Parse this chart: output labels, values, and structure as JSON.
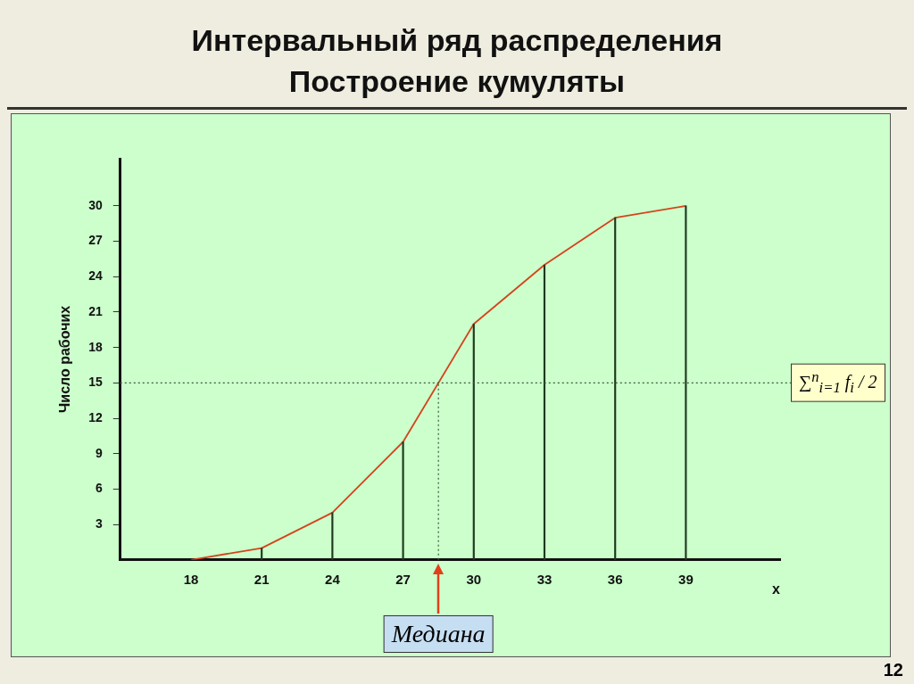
{
  "chart_data": {
    "type": "line",
    "title": "Интервальный ряд распределения\nПостроение кумуляты",
    "xlabel": "x",
    "ylabel": "Число рабочих",
    "x": [
      18,
      21,
      24,
      27,
      30,
      33,
      36,
      39
    ],
    "series": [
      {
        "type": "bar",
        "color": "#1e3a1e",
        "values": [
          0,
          1,
          4,
          10,
          20,
          25,
          29,
          30
        ]
      },
      {
        "color": "#d4441c",
        "values": [
          0,
          1,
          4,
          10,
          20,
          25,
          29,
          30
        ]
      }
    ],
    "xlim": [
      15,
      43
    ],
    "xticks": [
      18,
      21,
      24,
      27,
      30,
      33,
      36,
      39
    ],
    "ylim": [
      0,
      34
    ],
    "yticks": [
      3,
      6,
      9,
      12,
      15,
      18,
      21,
      24,
      27,
      30
    ],
    "ref_lines": [
      {
        "axis": "y",
        "value": 15,
        "color": "#3a5a3a",
        "line_style": "dotted"
      },
      {
        "axis": "x",
        "value": 28.5,
        "label": "Медиана",
        "color": "#3a5a3a",
        "line_style": "dotted"
      }
    ],
    "annotations": [
      "∑$^{n}$$_{i=1}$ f$_{i}$ / 2",
      "12"
    ],
    "grid": false,
    "legend": false,
    "marker": "none",
    "line_style": "solid"
  }
}
